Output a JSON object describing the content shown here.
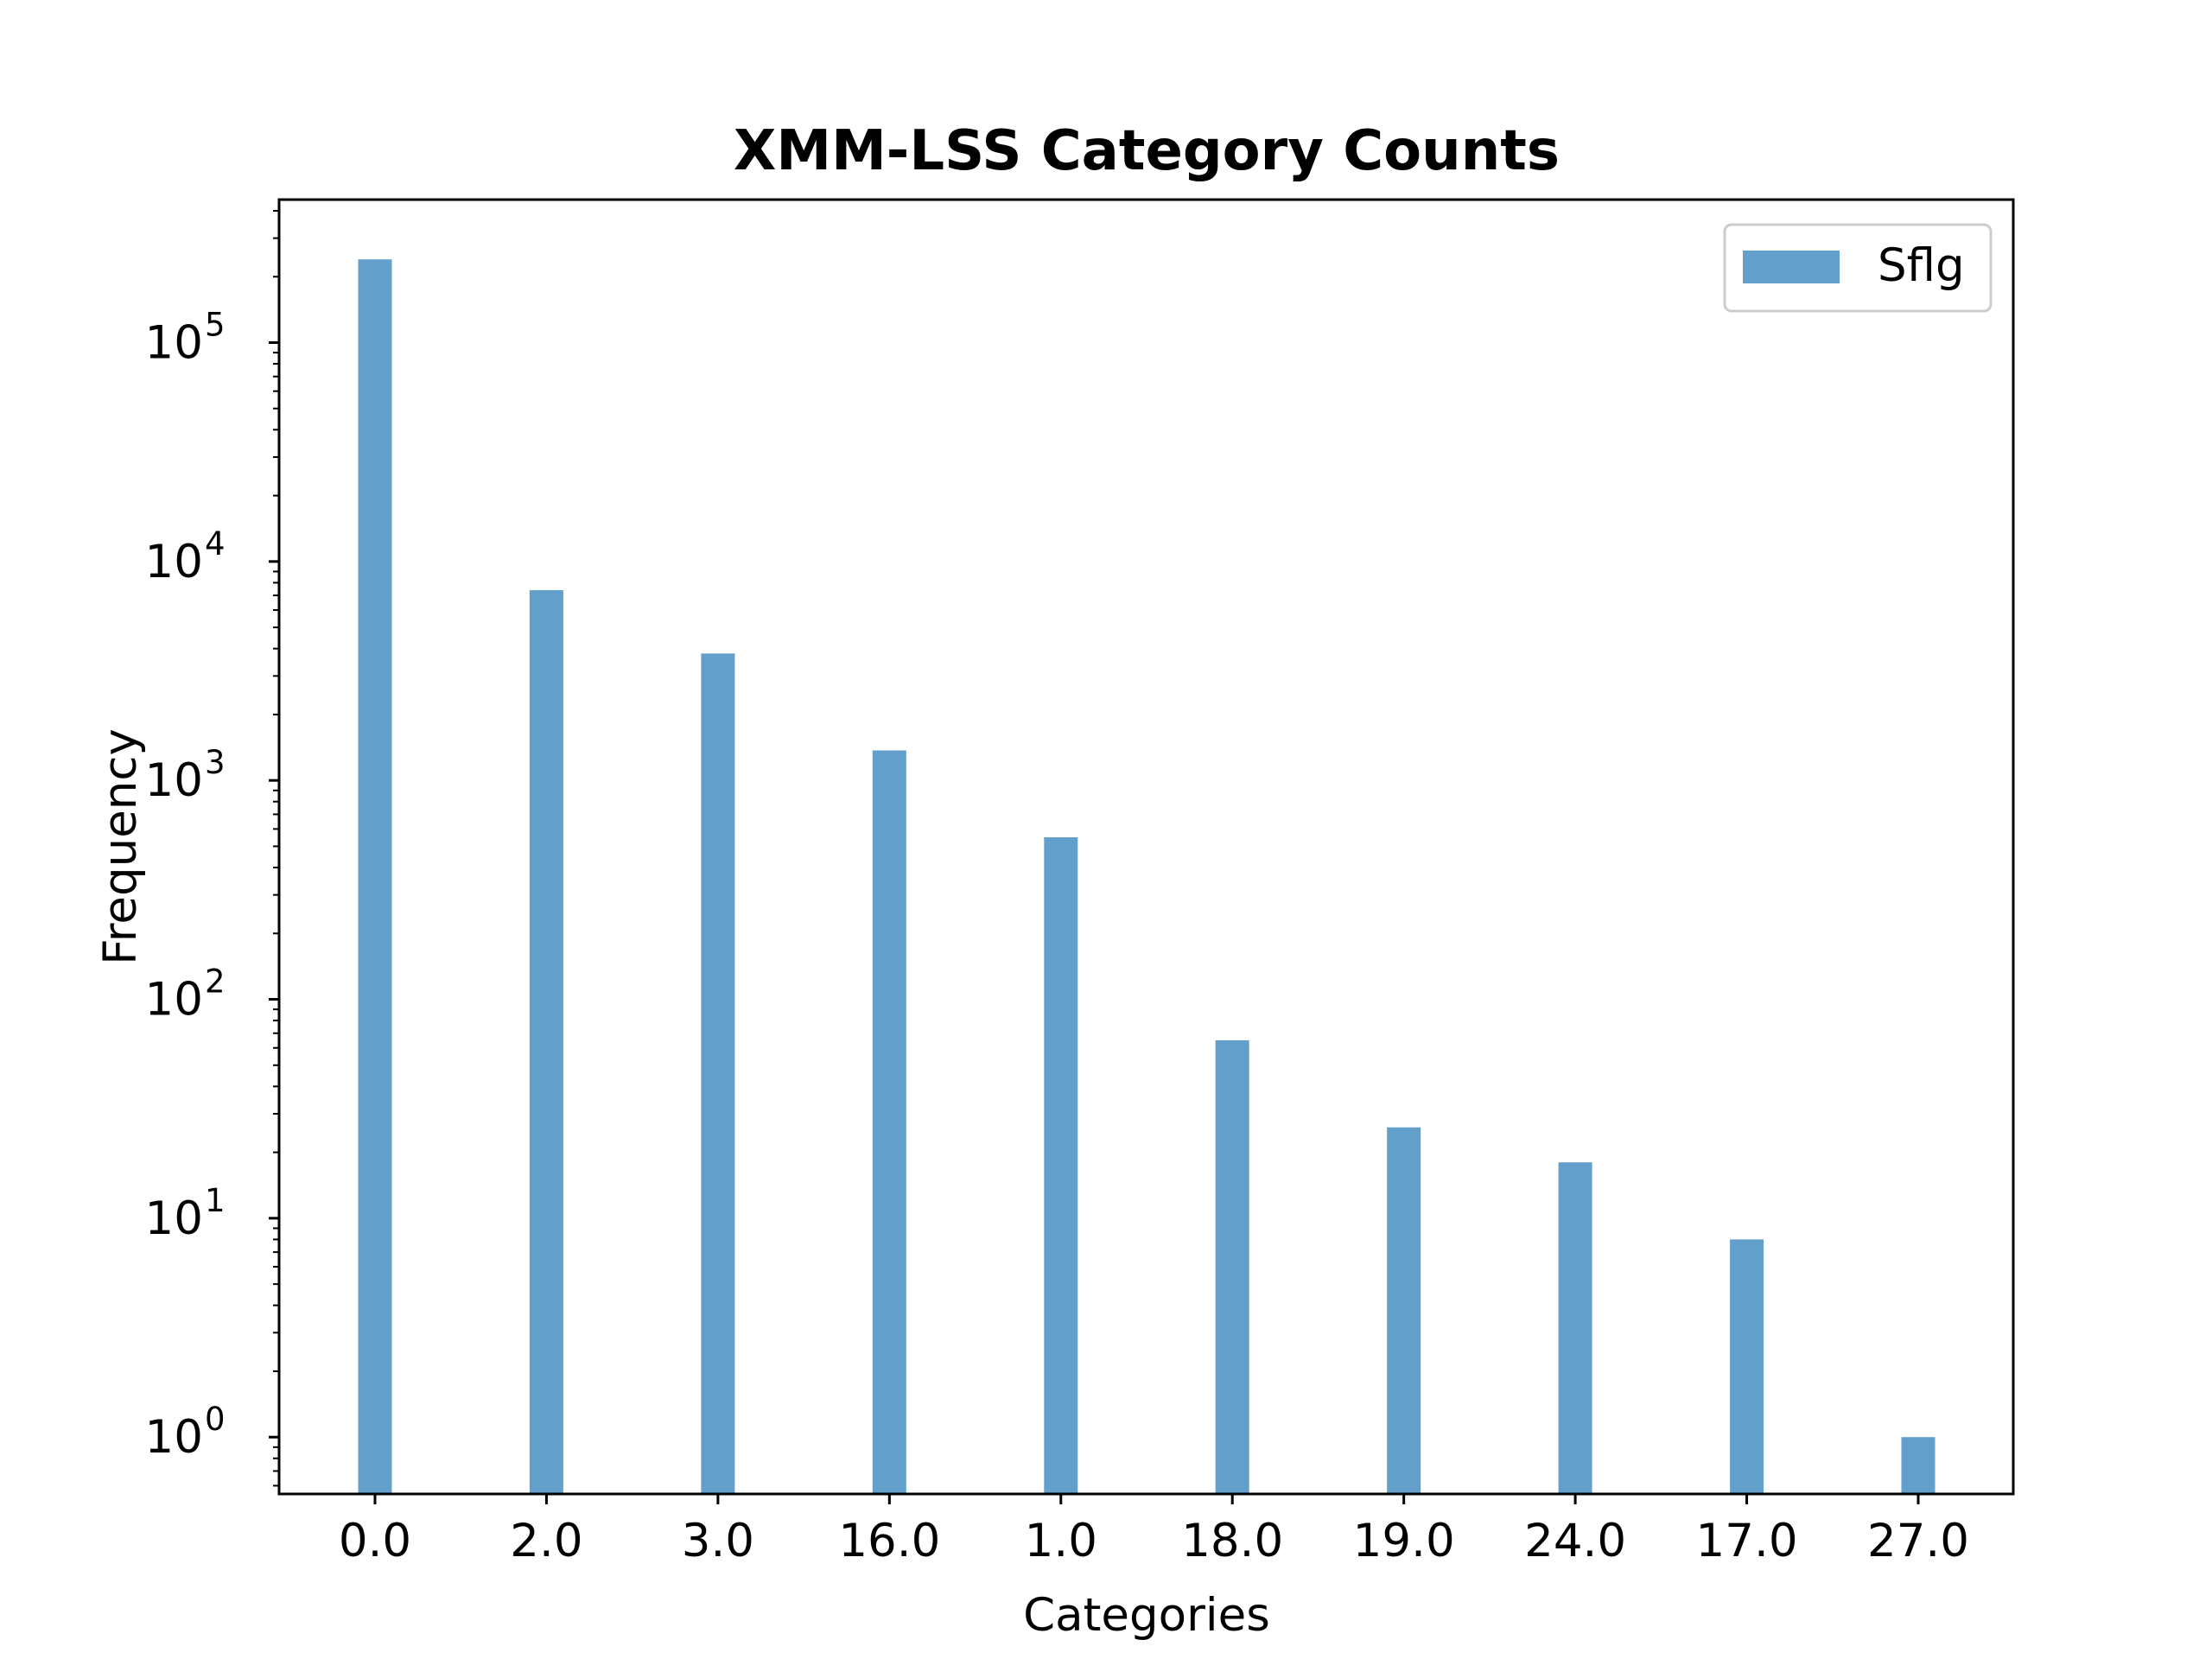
{
  "chart_data": {
    "type": "bar",
    "title": "XMM-LSS Category Counts",
    "xlabel": "Categories",
    "ylabel": "Frequency",
    "yscale": "log",
    "ylim": [
      0.55,
      450000
    ],
    "grid": false,
    "legend_position": "top-right",
    "categories": [
      "0.0",
      "2.0",
      "3.0",
      "16.0",
      "1.0",
      "18.0",
      "19.0",
      "24.0",
      "17.0",
      "27.0"
    ],
    "series": [
      {
        "name": "Sflg",
        "color": "#629fca",
        "values": [
          240000,
          7400,
          3800,
          1370,
          550,
          65,
          26,
          18,
          8,
          1
        ]
      }
    ],
    "y_ticks": [
      {
        "value": 1,
        "base": "10",
        "exp": "0"
      },
      {
        "value": 10,
        "base": "10",
        "exp": "1"
      },
      {
        "value": 100,
        "base": "10",
        "exp": "2"
      },
      {
        "value": 1000,
        "base": "10",
        "exp": "3"
      },
      {
        "value": 10000,
        "base": "10",
        "exp": "4"
      },
      {
        "value": 100000,
        "base": "10",
        "exp": "5"
      }
    ]
  }
}
